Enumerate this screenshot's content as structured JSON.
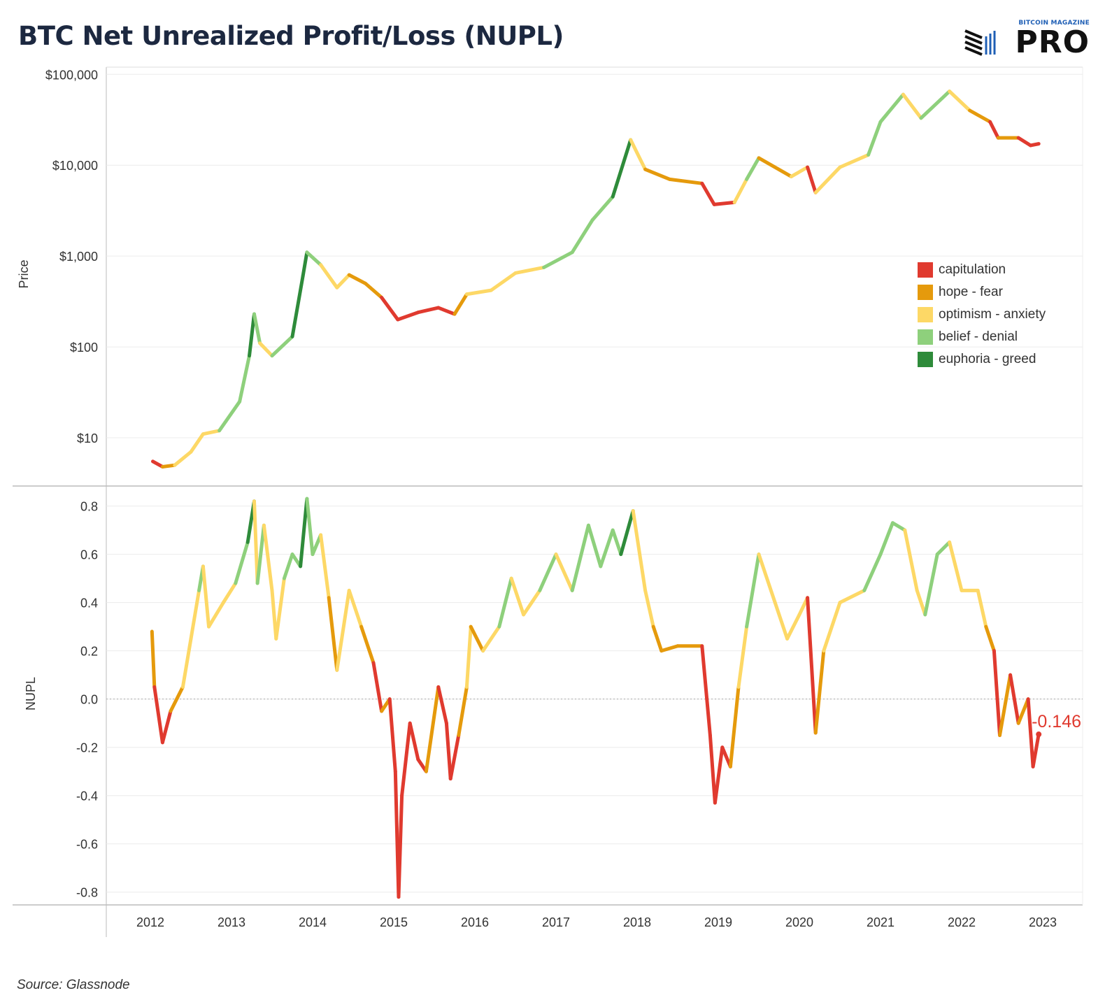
{
  "header": {
    "title": "BTC Net Unrealized Profit/Loss (NUPL)",
    "logo_small": "BITCOIN MAGAZINE",
    "logo_big": "PRO"
  },
  "source": "Source: Glassnode",
  "chart_data": {
    "type": "line",
    "colors": {
      "capitulation": "#e03a2f",
      "hope - fear": "#e59a0c",
      "optimism - anxiety": "#fdd866",
      "belief - denial": "#8ed07c",
      "euphoria - greed": "#2e8b3a"
    },
    "legend": {
      "position": "right",
      "entries": [
        "capitulation",
        "hope - fear",
        "optimism - anxiety",
        "belief - denial",
        "euphoria - greed"
      ]
    },
    "x_ticks": [
      "2012",
      "2013",
      "2014",
      "2015",
      "2016",
      "2017",
      "2018",
      "2019",
      "2020",
      "2021",
      "2022",
      "2023"
    ],
    "panels": [
      {
        "name": "price",
        "ylabel": "Price",
        "scale": "log",
        "ylim": [
          3,
          120000
        ],
        "yticks": [
          {
            "value": 100000,
            "label": "$100,000"
          },
          {
            "value": 10000,
            "label": "$10,000"
          },
          {
            "value": 1000,
            "label": "$1,000"
          },
          {
            "value": 100,
            "label": "$100"
          },
          {
            "value": 10,
            "label": "$10"
          }
        ],
        "series": [
          {
            "x": 2012.03,
            "y": 5.5,
            "zone": "hope - fear"
          },
          {
            "x": 2012.15,
            "y": 4.8,
            "zone": "capitulation"
          },
          {
            "x": 2012.3,
            "y": 5.0,
            "zone": "hope - fear"
          },
          {
            "x": 2012.5,
            "y": 7.0,
            "zone": "optimism - anxiety"
          },
          {
            "x": 2012.65,
            "y": 11.0,
            "zone": "optimism - anxiety"
          },
          {
            "x": 2012.85,
            "y": 12.0,
            "zone": "optimism - anxiety"
          },
          {
            "x": 2013.1,
            "y": 25.0,
            "zone": "belief - denial"
          },
          {
            "x": 2013.22,
            "y": 80.0,
            "zone": "belief - denial"
          },
          {
            "x": 2013.28,
            "y": 230.0,
            "zone": "euphoria - greed"
          },
          {
            "x": 2013.35,
            "y": 110.0,
            "zone": "belief - denial"
          },
          {
            "x": 2013.5,
            "y": 80.0,
            "zone": "optimism - anxiety"
          },
          {
            "x": 2013.75,
            "y": 130.0,
            "zone": "belief - denial"
          },
          {
            "x": 2013.88,
            "y": 600.0,
            "zone": "euphoria - greed"
          },
          {
            "x": 2013.93,
            "y": 1100.0,
            "zone": "euphoria - greed"
          },
          {
            "x": 2014.1,
            "y": 800.0,
            "zone": "belief - denial"
          },
          {
            "x": 2014.3,
            "y": 450.0,
            "zone": "optimism - anxiety"
          },
          {
            "x": 2014.45,
            "y": 620.0,
            "zone": "optimism - anxiety"
          },
          {
            "x": 2014.65,
            "y": 500.0,
            "zone": "hope - fear"
          },
          {
            "x": 2014.85,
            "y": 350.0,
            "zone": "hope - fear"
          },
          {
            "x": 2015.05,
            "y": 200.0,
            "zone": "capitulation"
          },
          {
            "x": 2015.3,
            "y": 240.0,
            "zone": "capitulation"
          },
          {
            "x": 2015.55,
            "y": 270.0,
            "zone": "capitulation"
          },
          {
            "x": 2015.75,
            "y": 230.0,
            "zone": "capitulation"
          },
          {
            "x": 2015.9,
            "y": 380.0,
            "zone": "hope - fear"
          },
          {
            "x": 2016.2,
            "y": 420.0,
            "zone": "optimism - anxiety"
          },
          {
            "x": 2016.5,
            "y": 650.0,
            "zone": "optimism - anxiety"
          },
          {
            "x": 2016.85,
            "y": 750.0,
            "zone": "optimism - anxiety"
          },
          {
            "x": 2017.2,
            "y": 1100.0,
            "zone": "belief - denial"
          },
          {
            "x": 2017.45,
            "y": 2500.0,
            "zone": "belief - denial"
          },
          {
            "x": 2017.7,
            "y": 4500.0,
            "zone": "belief - denial"
          },
          {
            "x": 2017.92,
            "y": 19000.0,
            "zone": "euphoria - greed"
          },
          {
            "x": 2018.1,
            "y": 9000.0,
            "zone": "optimism - anxiety"
          },
          {
            "x": 2018.4,
            "y": 7000.0,
            "zone": "hope - fear"
          },
          {
            "x": 2018.8,
            "y": 6300.0,
            "zone": "hope - fear"
          },
          {
            "x": 2018.95,
            "y": 3700.0,
            "zone": "capitulation"
          },
          {
            "x": 2019.2,
            "y": 3900.0,
            "zone": "capitulation"
          },
          {
            "x": 2019.35,
            "y": 7000.0,
            "zone": "optimism - anxiety"
          },
          {
            "x": 2019.5,
            "y": 12000.0,
            "zone": "belief - denial"
          },
          {
            "x": 2019.9,
            "y": 7500.0,
            "zone": "hope - fear"
          },
          {
            "x": 2020.1,
            "y": 9500.0,
            "zone": "optimism - anxiety"
          },
          {
            "x": 2020.2,
            "y": 5000.0,
            "zone": "capitulation"
          },
          {
            "x": 2020.5,
            "y": 9500.0,
            "zone": "optimism - anxiety"
          },
          {
            "x": 2020.85,
            "y": 13000.0,
            "zone": "optimism - anxiety"
          },
          {
            "x": 2021.0,
            "y": 30000.0,
            "zone": "belief - denial"
          },
          {
            "x": 2021.28,
            "y": 60000.0,
            "zone": "belief - denial"
          },
          {
            "x": 2021.5,
            "y": 33000.0,
            "zone": "optimism - anxiety"
          },
          {
            "x": 2021.85,
            "y": 65000.0,
            "zone": "belief - denial"
          },
          {
            "x": 2022.1,
            "y": 40000.0,
            "zone": "optimism - anxiety"
          },
          {
            "x": 2022.35,
            "y": 30000.0,
            "zone": "hope - fear"
          },
          {
            "x": 2022.45,
            "y": 20000.0,
            "zone": "capitulation"
          },
          {
            "x": 2022.7,
            "y": 20000.0,
            "zone": "hope - fear"
          },
          {
            "x": 2022.85,
            "y": 16500.0,
            "zone": "capitulation"
          },
          {
            "x": 2022.95,
            "y": 17200.0,
            "zone": "capitulation"
          }
        ]
      },
      {
        "name": "nupl",
        "ylabel": "NUPL",
        "scale": "linear",
        "ylim": [
          -0.85,
          0.88
        ],
        "yticks": [
          {
            "value": 0.8,
            "label": "0.8"
          },
          {
            "value": 0.6,
            "label": "0.6"
          },
          {
            "value": 0.4,
            "label": "0.4"
          },
          {
            "value": 0.2,
            "label": "0.2"
          },
          {
            "value": 0.0,
            "label": "0.0"
          },
          {
            "value": -0.2,
            "label": "-0.2"
          },
          {
            "value": -0.4,
            "label": "-0.4"
          },
          {
            "value": -0.6,
            "label": "-0.6"
          },
          {
            "value": -0.8,
            "label": "-0.8"
          }
        ],
        "zero_line": true,
        "last_value_label": "-0.146",
        "series": [
          {
            "x": 2012.02,
            "y": 0.28,
            "zone": "hope - fear"
          },
          {
            "x": 2012.05,
            "y": 0.05,
            "zone": "hope - fear"
          },
          {
            "x": 2012.15,
            "y": -0.18,
            "zone": "capitulation"
          },
          {
            "x": 2012.25,
            "y": -0.05,
            "zone": "capitulation"
          },
          {
            "x": 2012.4,
            "y": 0.05,
            "zone": "hope - fear"
          },
          {
            "x": 2012.5,
            "y": 0.25,
            "zone": "optimism - anxiety"
          },
          {
            "x": 2012.6,
            "y": 0.45,
            "zone": "optimism - anxiety"
          },
          {
            "x": 2012.65,
            "y": 0.55,
            "zone": "belief - denial"
          },
          {
            "x": 2012.72,
            "y": 0.3,
            "zone": "optimism - anxiety"
          },
          {
            "x": 2012.9,
            "y": 0.4,
            "zone": "optimism - anxiety"
          },
          {
            "x": 2013.05,
            "y": 0.48,
            "zone": "optimism - anxiety"
          },
          {
            "x": 2013.2,
            "y": 0.65,
            "zone": "belief - denial"
          },
          {
            "x": 2013.28,
            "y": 0.82,
            "zone": "euphoria - greed"
          },
          {
            "x": 2013.32,
            "y": 0.48,
            "zone": "optimism - anxiety"
          },
          {
            "x": 2013.4,
            "y": 0.72,
            "zone": "belief - denial"
          },
          {
            "x": 2013.5,
            "y": 0.45,
            "zone": "optimism - anxiety"
          },
          {
            "x": 2013.55,
            "y": 0.25,
            "zone": "optimism - anxiety"
          },
          {
            "x": 2013.65,
            "y": 0.5,
            "zone": "optimism - anxiety"
          },
          {
            "x": 2013.75,
            "y": 0.6,
            "zone": "belief - denial"
          },
          {
            "x": 2013.85,
            "y": 0.55,
            "zone": "belief - denial"
          },
          {
            "x": 2013.93,
            "y": 0.83,
            "zone": "euphoria - greed"
          },
          {
            "x": 2014.0,
            "y": 0.6,
            "zone": "belief - denial"
          },
          {
            "x": 2014.1,
            "y": 0.68,
            "zone": "belief - denial"
          },
          {
            "x": 2014.2,
            "y": 0.42,
            "zone": "optimism - anxiety"
          },
          {
            "x": 2014.3,
            "y": 0.12,
            "zone": "hope - fear"
          },
          {
            "x": 2014.45,
            "y": 0.45,
            "zone": "optimism - anxiety"
          },
          {
            "x": 2014.6,
            "y": 0.3,
            "zone": "optimism - anxiety"
          },
          {
            "x": 2014.75,
            "y": 0.15,
            "zone": "hope - fear"
          },
          {
            "x": 2014.85,
            "y": -0.05,
            "zone": "capitulation"
          },
          {
            "x": 2014.95,
            "y": 0.0,
            "zone": "hope - fear"
          },
          {
            "x": 2015.02,
            "y": -0.3,
            "zone": "capitulation"
          },
          {
            "x": 2015.06,
            "y": -0.82,
            "zone": "capitulation"
          },
          {
            "x": 2015.1,
            "y": -0.4,
            "zone": "capitulation"
          },
          {
            "x": 2015.2,
            "y": -0.1,
            "zone": "capitulation"
          },
          {
            "x": 2015.3,
            "y": -0.25,
            "zone": "capitulation"
          },
          {
            "x": 2015.4,
            "y": -0.3,
            "zone": "capitulation"
          },
          {
            "x": 2015.55,
            "y": 0.05,
            "zone": "hope - fear"
          },
          {
            "x": 2015.65,
            "y": -0.1,
            "zone": "capitulation"
          },
          {
            "x": 2015.7,
            "y": -0.33,
            "zone": "capitulation"
          },
          {
            "x": 2015.8,
            "y": -0.15,
            "zone": "capitulation"
          },
          {
            "x": 2015.9,
            "y": 0.05,
            "zone": "hope - fear"
          },
          {
            "x": 2015.95,
            "y": 0.3,
            "zone": "optimism - anxiety"
          },
          {
            "x": 2016.1,
            "y": 0.2,
            "zone": "hope - fear"
          },
          {
            "x": 2016.3,
            "y": 0.3,
            "zone": "optimism - anxiety"
          },
          {
            "x": 2016.45,
            "y": 0.5,
            "zone": "belief - denial"
          },
          {
            "x": 2016.6,
            "y": 0.35,
            "zone": "optimism - anxiety"
          },
          {
            "x": 2016.8,
            "y": 0.45,
            "zone": "optimism - anxiety"
          },
          {
            "x": 2017.0,
            "y": 0.6,
            "zone": "belief - denial"
          },
          {
            "x": 2017.2,
            "y": 0.45,
            "zone": "optimism - anxiety"
          },
          {
            "x": 2017.4,
            "y": 0.72,
            "zone": "belief - denial"
          },
          {
            "x": 2017.55,
            "y": 0.55,
            "zone": "belief - denial"
          },
          {
            "x": 2017.7,
            "y": 0.7,
            "zone": "belief - denial"
          },
          {
            "x": 2017.8,
            "y": 0.6,
            "zone": "belief - denial"
          },
          {
            "x": 2017.95,
            "y": 0.78,
            "zone": "euphoria - greed"
          },
          {
            "x": 2018.1,
            "y": 0.45,
            "zone": "optimism - anxiety"
          },
          {
            "x": 2018.2,
            "y": 0.3,
            "zone": "optimism - anxiety"
          },
          {
            "x": 2018.3,
            "y": 0.2,
            "zone": "hope - fear"
          },
          {
            "x": 2018.5,
            "y": 0.22,
            "zone": "hope - fear"
          },
          {
            "x": 2018.8,
            "y": 0.22,
            "zone": "hope - fear"
          },
          {
            "x": 2018.9,
            "y": -0.15,
            "zone": "capitulation"
          },
          {
            "x": 2018.96,
            "y": -0.43,
            "zone": "capitulation"
          },
          {
            "x": 2019.05,
            "y": -0.2,
            "zone": "capitulation"
          },
          {
            "x": 2019.15,
            "y": -0.28,
            "zone": "capitulation"
          },
          {
            "x": 2019.25,
            "y": 0.05,
            "zone": "hope - fear"
          },
          {
            "x": 2019.35,
            "y": 0.3,
            "zone": "optimism - anxiety"
          },
          {
            "x": 2019.5,
            "y": 0.6,
            "zone": "belief - denial"
          },
          {
            "x": 2019.7,
            "y": 0.4,
            "zone": "optimism - anxiety"
          },
          {
            "x": 2019.85,
            "y": 0.25,
            "zone": "optimism - anxiety"
          },
          {
            "x": 2020.0,
            "y": 0.35,
            "zone": "optimism - anxiety"
          },
          {
            "x": 2020.1,
            "y": 0.42,
            "zone": "optimism - anxiety"
          },
          {
            "x": 2020.2,
            "y": -0.14,
            "zone": "capitulation"
          },
          {
            "x": 2020.3,
            "y": 0.2,
            "zone": "hope - fear"
          },
          {
            "x": 2020.5,
            "y": 0.4,
            "zone": "optimism - anxiety"
          },
          {
            "x": 2020.8,
            "y": 0.45,
            "zone": "optimism - anxiety"
          },
          {
            "x": 2021.0,
            "y": 0.6,
            "zone": "belief - denial"
          },
          {
            "x": 2021.15,
            "y": 0.73,
            "zone": "belief - denial"
          },
          {
            "x": 2021.3,
            "y": 0.7,
            "zone": "belief - denial"
          },
          {
            "x": 2021.45,
            "y": 0.45,
            "zone": "optimism - anxiety"
          },
          {
            "x": 2021.55,
            "y": 0.35,
            "zone": "optimism - anxiety"
          },
          {
            "x": 2021.7,
            "y": 0.6,
            "zone": "belief - denial"
          },
          {
            "x": 2021.85,
            "y": 0.65,
            "zone": "belief - denial"
          },
          {
            "x": 2022.0,
            "y": 0.45,
            "zone": "optimism - anxiety"
          },
          {
            "x": 2022.2,
            "y": 0.45,
            "zone": "optimism - anxiety"
          },
          {
            "x": 2022.3,
            "y": 0.3,
            "zone": "optimism - anxiety"
          },
          {
            "x": 2022.4,
            "y": 0.2,
            "zone": "hope - fear"
          },
          {
            "x": 2022.47,
            "y": -0.15,
            "zone": "capitulation"
          },
          {
            "x": 2022.6,
            "y": 0.1,
            "zone": "hope - fear"
          },
          {
            "x": 2022.7,
            "y": -0.1,
            "zone": "capitulation"
          },
          {
            "x": 2022.82,
            "y": 0.0,
            "zone": "hope - fear"
          },
          {
            "x": 2022.88,
            "y": -0.28,
            "zone": "capitulation"
          },
          {
            "x": 2022.95,
            "y": -0.146,
            "zone": "capitulation"
          }
        ]
      }
    ]
  }
}
